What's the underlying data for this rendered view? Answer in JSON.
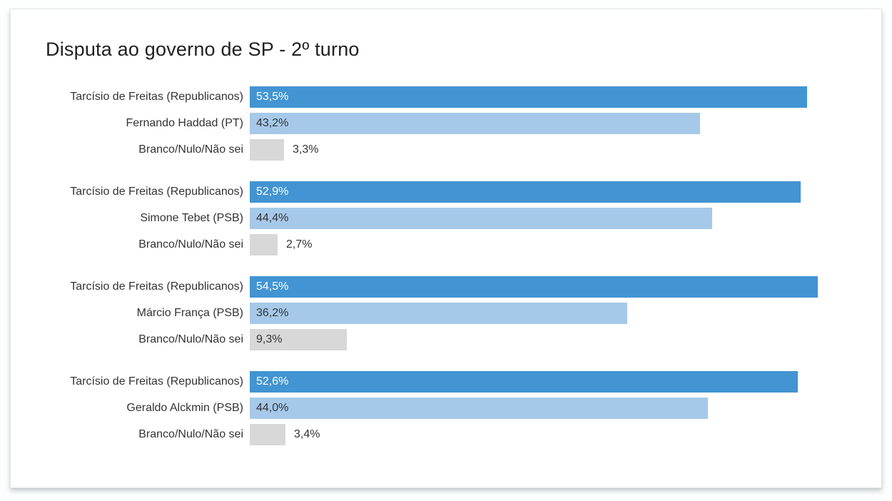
{
  "page": {
    "title": "Disputa ao governo de SP - 2º turno"
  },
  "colors": {
    "leader": "#4294d2",
    "challenger": "#a6c9e9",
    "neutral": "#d8d8d8"
  },
  "chart_data": {
    "type": "bar",
    "orientation": "horizontal",
    "title": "Disputa ao governo de SP - 2º turno",
    "unit": "%",
    "value_decimal_separator": ",",
    "xlim_hint": [
      0,
      57.5
    ],
    "grid": false,
    "legend": "none",
    "scenarios": [
      {
        "bars": [
          {
            "label": "Tarcísio de Freitas (Republicanos)",
            "value": 53.5,
            "value_label": "53,5%",
            "color_key": "leader"
          },
          {
            "label": "Fernando Haddad (PT)",
            "value": 43.2,
            "value_label": "43,2%",
            "color_key": "challenger"
          },
          {
            "label": "Branco/Nulo/Não sei",
            "value": 3.3,
            "value_label": "3,3%",
            "color_key": "neutral"
          }
        ]
      },
      {
        "bars": [
          {
            "label": "Tarcísio de Freitas (Republicanos)",
            "value": 52.9,
            "value_label": "52,9%",
            "color_key": "leader"
          },
          {
            "label": "Simone Tebet (PSB)",
            "value": 44.4,
            "value_label": "44,4%",
            "color_key": "challenger"
          },
          {
            "label": "Branco/Nulo/Não sei",
            "value": 2.7,
            "value_label": "2,7%",
            "color_key": "neutral"
          }
        ]
      },
      {
        "bars": [
          {
            "label": "Tarcísio de Freitas (Republicanos)",
            "value": 54.5,
            "value_label": "54,5%",
            "color_key": "leader"
          },
          {
            "label": "Márcio França (PSB)",
            "value": 36.2,
            "value_label": "36,2%",
            "color_key": "challenger"
          },
          {
            "label": "Branco/Nulo/Não sei",
            "value": 9.3,
            "value_label": "9,3%",
            "color_key": "neutral"
          }
        ]
      },
      {
        "bars": [
          {
            "label": "Tarcísio de Freitas (Republicanos)",
            "value": 52.6,
            "value_label": "52,6%",
            "color_key": "leader"
          },
          {
            "label": "Geraldo Alckmin (PSB)",
            "value": 44.0,
            "value_label": "44,0%",
            "color_key": "challenger"
          },
          {
            "label": "Branco/Nulo/Não sei",
            "value": 3.4,
            "value_label": "3,4%",
            "color_key": "neutral"
          }
        ]
      }
    ]
  }
}
